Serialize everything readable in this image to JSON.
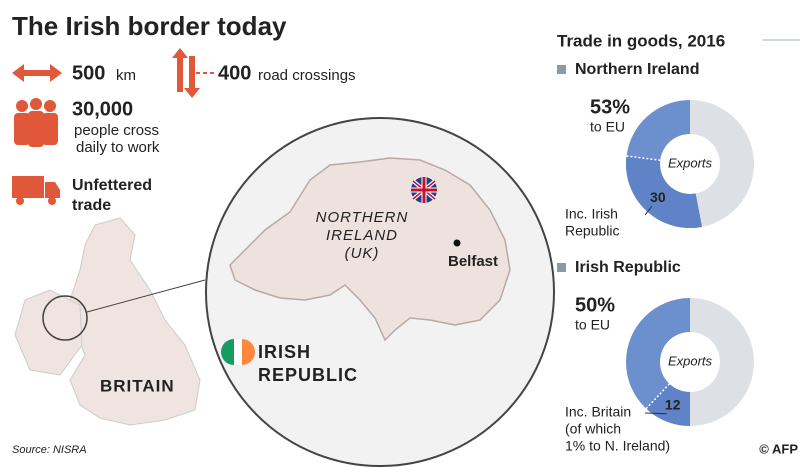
{
  "header": {
    "title": "The Irish border today"
  },
  "facts": [
    {
      "number": "500",
      "text": "km"
    },
    {
      "number": "400",
      "text": "road crossings"
    },
    {
      "number": "30,000",
      "lines": [
        "people cross",
        "daily to work"
      ]
    },
    {
      "lines": [
        "Unfettered",
        "trade"
      ]
    }
  ],
  "map": {
    "region": [
      "NORTHERN",
      "IRELAND",
      "(UK)"
    ],
    "city": "Belfast",
    "republic": [
      "IRISH",
      "REPUBLIC"
    ],
    "britain": "BRITAIN"
  },
  "trade": {
    "title": "Trade in goods, 2016",
    "panels": [
      {
        "name": "Northern Ireland",
        "eu_share": 53,
        "eu_label": "53%",
        "eu_caption": "to EU",
        "center": "Exports",
        "sub_share": 30,
        "sub_caption": [
          "Inc. Irish",
          "Republic"
        ]
      },
      {
        "name": "Irish Republic",
        "eu_share": 50,
        "eu_label": "50%",
        "eu_caption": "to EU",
        "center": "Exports",
        "sub_share": 12,
        "sub_caption": [
          "Inc. Britain",
          "(of which",
          "1% to N. Ireland)"
        ]
      }
    ]
  },
  "footer": {
    "source": "Source: NISRA",
    "credit": "© AFP"
  }
}
